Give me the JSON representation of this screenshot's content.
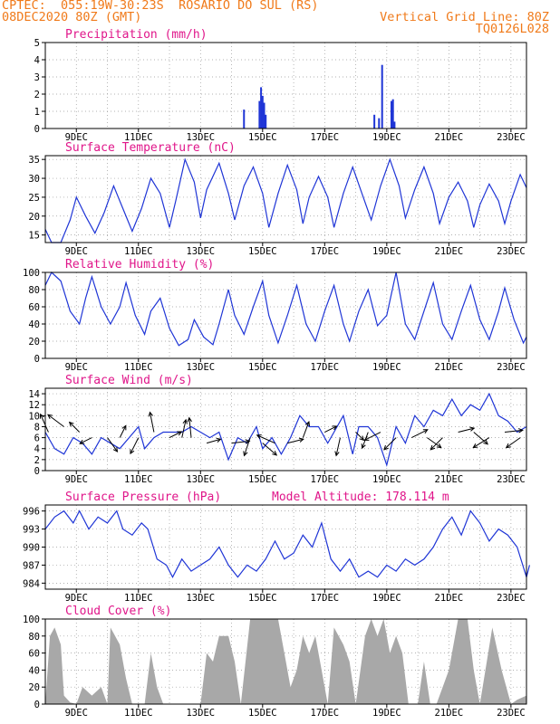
{
  "header": {
    "line1_left": "CPTEC:  055:19W-30:23S  ROSARIO DO SUL (RS)",
    "line2_left": "08DEC2020 80Z (GMT)",
    "line2_right": "Vertical Grid Line: 80Z",
    "line3_right": "TQ0126L028"
  },
  "colors": {
    "header": "#f07a1a",
    "title": "#e0168a",
    "series": "#1f35d6",
    "cloud": "#a8a8a8"
  },
  "x_axis": {
    "ticks": [
      "9DEC",
      "11DEC",
      "13DEC",
      "15DEC",
      "17DEC",
      "19DEC",
      "21DEC",
      "23DEC"
    ]
  },
  "chart_data": [
    {
      "type": "bar",
      "title": "Precipitation (mm/h)",
      "ylim": [
        0,
        5
      ],
      "yticks": [
        0,
        1,
        2,
        3,
        4,
        5
      ],
      "values_by_day": [
        [
          14.4,
          1.1
        ],
        [
          14.9,
          1.6
        ],
        [
          14.95,
          2.4
        ],
        [
          15.0,
          1.9
        ],
        [
          15.05,
          1.5
        ],
        [
          15.1,
          0.8
        ],
        [
          18.6,
          0.8
        ],
        [
          18.75,
          0.6
        ],
        [
          18.85,
          3.7
        ],
        [
          19.15,
          1.6
        ],
        [
          19.2,
          1.7
        ],
        [
          19.25,
          0.4
        ]
      ]
    },
    {
      "type": "line",
      "title": "Surface Temperature (nC)",
      "ylim": [
        13,
        36
      ],
      "yticks": [
        15,
        20,
        25,
        30,
        35
      ],
      "points": [
        [
          8.0,
          16.5
        ],
        [
          8.2,
          13.0
        ],
        [
          8.5,
          13.0
        ],
        [
          8.8,
          19
        ],
        [
          9.0,
          25.0
        ],
        [
          9.3,
          20
        ],
        [
          9.6,
          15.5
        ],
        [
          9.9,
          21
        ],
        [
          10.2,
          28.0
        ],
        [
          10.5,
          22
        ],
        [
          10.8,
          16.0
        ],
        [
          11.1,
          22
        ],
        [
          11.4,
          30.0
        ],
        [
          11.7,
          26
        ],
        [
          12.0,
          17.0
        ],
        [
          12.2,
          24
        ],
        [
          12.5,
          35.0
        ],
        [
          12.8,
          29
        ],
        [
          13.0,
          19.5
        ],
        [
          13.2,
          27
        ],
        [
          13.6,
          34.0
        ],
        [
          13.9,
          26
        ],
        [
          14.1,
          19.0
        ],
        [
          14.4,
          28
        ],
        [
          14.7,
          33.0
        ],
        [
          15.0,
          26
        ],
        [
          15.2,
          17.0
        ],
        [
          15.5,
          26
        ],
        [
          15.8,
          33.5
        ],
        [
          16.1,
          27
        ],
        [
          16.3,
          18.0
        ],
        [
          16.5,
          25
        ],
        [
          16.8,
          30.5
        ],
        [
          17.1,
          25
        ],
        [
          17.3,
          17.0
        ],
        [
          17.6,
          26
        ],
        [
          17.9,
          33.0
        ],
        [
          18.2,
          26
        ],
        [
          18.5,
          19.0
        ],
        [
          18.8,
          28
        ],
        [
          19.1,
          35.0
        ],
        [
          19.4,
          28
        ],
        [
          19.6,
          19.5
        ],
        [
          19.9,
          27
        ],
        [
          20.2,
          33.0
        ],
        [
          20.5,
          26
        ],
        [
          20.7,
          18.0
        ],
        [
          21.0,
          25
        ],
        [
          21.3,
          29.0
        ],
        [
          21.6,
          24
        ],
        [
          21.8,
          17.0
        ],
        [
          22.0,
          23
        ],
        [
          22.3,
          28.5
        ],
        [
          22.6,
          24
        ],
        [
          22.8,
          18.0
        ],
        [
          23.0,
          24
        ],
        [
          23.3,
          31.0
        ],
        [
          23.5,
          27.5
        ]
      ]
    },
    {
      "type": "line",
      "title": "Relative Humidity (%)",
      "ylim": [
        0,
        100
      ],
      "yticks": [
        0,
        20,
        40,
        60,
        80,
        100
      ],
      "points": [
        [
          8.0,
          85
        ],
        [
          8.2,
          100
        ],
        [
          8.5,
          90
        ],
        [
          8.8,
          55
        ],
        [
          9.1,
          40
        ],
        [
          9.3,
          70
        ],
        [
          9.5,
          95
        ],
        [
          9.8,
          60
        ],
        [
          10.1,
          40
        ],
        [
          10.4,
          60
        ],
        [
          10.6,
          88
        ],
        [
          10.9,
          50
        ],
        [
          11.2,
          28
        ],
        [
          11.4,
          55
        ],
        [
          11.7,
          70
        ],
        [
          12.0,
          35
        ],
        [
          12.3,
          15
        ],
        [
          12.6,
          22
        ],
        [
          12.8,
          45
        ],
        [
          13.1,
          25
        ],
        [
          13.4,
          16
        ],
        [
          13.6,
          40
        ],
        [
          13.9,
          80
        ],
        [
          14.1,
          50
        ],
        [
          14.4,
          28
        ],
        [
          14.7,
          60
        ],
        [
          15.0,
          90
        ],
        [
          15.2,
          50
        ],
        [
          15.5,
          18
        ],
        [
          15.8,
          50
        ],
        [
          16.1,
          85
        ],
        [
          16.4,
          40
        ],
        [
          16.7,
          20
        ],
        [
          17.0,
          55
        ],
        [
          17.3,
          85
        ],
        [
          17.6,
          40
        ],
        [
          17.8,
          20
        ],
        [
          18.1,
          55
        ],
        [
          18.4,
          80
        ],
        [
          18.7,
          38
        ],
        [
          19.0,
          50
        ],
        [
          19.3,
          100
        ],
        [
          19.6,
          40
        ],
        [
          19.9,
          22
        ],
        [
          20.2,
          55
        ],
        [
          20.5,
          88
        ],
        [
          20.8,
          40
        ],
        [
          21.1,
          22
        ],
        [
          21.4,
          55
        ],
        [
          21.7,
          85
        ],
        [
          22.0,
          45
        ],
        [
          22.3,
          22
        ],
        [
          22.6,
          55
        ],
        [
          22.8,
          82
        ],
        [
          23.1,
          45
        ],
        [
          23.4,
          18
        ],
        [
          23.5,
          25
        ]
      ]
    },
    {
      "type": "line",
      "title": "Surface Wind (m/s)",
      "ylim": [
        0,
        15
      ],
      "yticks": [
        0,
        2,
        4,
        6,
        8,
        10,
        12,
        14
      ],
      "points": [
        [
          8.0,
          7
        ],
        [
          8.3,
          4
        ],
        [
          8.6,
          3
        ],
        [
          8.9,
          6
        ],
        [
          9.2,
          5
        ],
        [
          9.5,
          3
        ],
        [
          9.8,
          6
        ],
        [
          10.1,
          5
        ],
        [
          10.4,
          4
        ],
        [
          10.7,
          6
        ],
        [
          11.0,
          8
        ],
        [
          11.2,
          4
        ],
        [
          11.5,
          6
        ],
        [
          11.8,
          7
        ],
        [
          12.1,
          7
        ],
        [
          12.4,
          7
        ],
        [
          12.7,
          8
        ],
        [
          13.0,
          7
        ],
        [
          13.3,
          6
        ],
        [
          13.6,
          7
        ],
        [
          13.9,
          2
        ],
        [
          14.2,
          6
        ],
        [
          14.5,
          5
        ],
        [
          14.8,
          8
        ],
        [
          15.0,
          4
        ],
        [
          15.3,
          6
        ],
        [
          15.6,
          3
        ],
        [
          15.9,
          6
        ],
        [
          16.2,
          10
        ],
        [
          16.5,
          8
        ],
        [
          16.8,
          8
        ],
        [
          17.1,
          5
        ],
        [
          17.3,
          7
        ],
        [
          17.6,
          10
        ],
        [
          17.9,
          3
        ],
        [
          18.1,
          8
        ],
        [
          18.4,
          8
        ],
        [
          18.7,
          6
        ],
        [
          19.0,
          1
        ],
        [
          19.3,
          8
        ],
        [
          19.6,
          5
        ],
        [
          19.9,
          10
        ],
        [
          20.2,
          8
        ],
        [
          20.5,
          11
        ],
        [
          20.8,
          10
        ],
        [
          21.1,
          13
        ],
        [
          21.4,
          10
        ],
        [
          21.7,
          12
        ],
        [
          22.0,
          11
        ],
        [
          22.3,
          14
        ],
        [
          22.6,
          10
        ],
        [
          22.9,
          9
        ],
        [
          23.2,
          7
        ],
        [
          23.5,
          8
        ]
      ]
    },
    {
      "type": "line",
      "title": "Surface Pressure (hPa)",
      "subtitle": "Model Altitude: 178.114 m",
      "ylim": [
        983,
        997
      ],
      "yticks": [
        984,
        987,
        990,
        993,
        996
      ],
      "points": [
        [
          8.0,
          993
        ],
        [
          8.3,
          995
        ],
        [
          8.6,
          996
        ],
        [
          8.9,
          994
        ],
        [
          9.1,
          996
        ],
        [
          9.4,
          993
        ],
        [
          9.7,
          995
        ],
        [
          10.0,
          994
        ],
        [
          10.3,
          996
        ],
        [
          10.5,
          993
        ],
        [
          10.8,
          992
        ],
        [
          11.1,
          994
        ],
        [
          11.3,
          993
        ],
        [
          11.6,
          988
        ],
        [
          11.9,
          987
        ],
        [
          12.1,
          985
        ],
        [
          12.4,
          988
        ],
        [
          12.7,
          986
        ],
        [
          13.0,
          987
        ],
        [
          13.3,
          988
        ],
        [
          13.6,
          990
        ],
        [
          13.9,
          987
        ],
        [
          14.2,
          985
        ],
        [
          14.5,
          987
        ],
        [
          14.8,
          986
        ],
        [
          15.1,
          988
        ],
        [
          15.4,
          991
        ],
        [
          15.7,
          988
        ],
        [
          16.0,
          989
        ],
        [
          16.3,
          992
        ],
        [
          16.6,
          990
        ],
        [
          16.9,
          994
        ],
        [
          17.2,
          988
        ],
        [
          17.5,
          986
        ],
        [
          17.8,
          988
        ],
        [
          18.1,
          985
        ],
        [
          18.4,
          986
        ],
        [
          18.7,
          985
        ],
        [
          19.0,
          987
        ],
        [
          19.3,
          986
        ],
        [
          19.6,
          988
        ],
        [
          19.9,
          987
        ],
        [
          20.2,
          988
        ],
        [
          20.5,
          990
        ],
        [
          20.8,
          993
        ],
        [
          21.1,
          995
        ],
        [
          21.4,
          992
        ],
        [
          21.7,
          996
        ],
        [
          22.0,
          994
        ],
        [
          22.3,
          991
        ],
        [
          22.6,
          993
        ],
        [
          22.9,
          992
        ],
        [
          23.2,
          990
        ],
        [
          23.5,
          985
        ],
        [
          23.6,
          987
        ]
      ]
    },
    {
      "type": "area",
      "title": "Cloud Cover (%)",
      "ylim": [
        0,
        100
      ],
      "yticks": [
        0,
        20,
        40,
        60,
        80,
        100
      ],
      "points": [
        [
          8.0,
          0
        ],
        [
          8.15,
          80
        ],
        [
          8.3,
          90
        ],
        [
          8.5,
          70
        ],
        [
          8.6,
          10
        ],
        [
          8.8,
          2
        ],
        [
          9.0,
          0
        ],
        [
          9.2,
          20
        ],
        [
          9.5,
          10
        ],
        [
          9.8,
          20
        ],
        [
          10.0,
          0
        ],
        [
          10.1,
          90
        ],
        [
          10.4,
          70
        ],
        [
          10.6,
          30
        ],
        [
          10.8,
          0
        ],
        [
          11.2,
          0
        ],
        [
          11.4,
          60
        ],
        [
          11.6,
          20
        ],
        [
          11.8,
          0
        ],
        [
          12.6,
          0
        ],
        [
          13.0,
          0
        ],
        [
          13.2,
          60
        ],
        [
          13.4,
          50
        ],
        [
          13.6,
          80
        ],
        [
          13.9,
          80
        ],
        [
          14.1,
          50
        ],
        [
          14.3,
          0
        ],
        [
          14.6,
          100
        ],
        [
          15.0,
          100
        ],
        [
          15.5,
          100
        ],
        [
          15.7,
          60
        ],
        [
          15.9,
          20
        ],
        [
          16.1,
          40
        ],
        [
          16.3,
          80
        ],
        [
          16.5,
          60
        ],
        [
          16.7,
          80
        ],
        [
          16.9,
          40
        ],
        [
          17.1,
          0
        ],
        [
          17.3,
          90
        ],
        [
          17.6,
          70
        ],
        [
          17.8,
          50
        ],
        [
          18.0,
          0
        ],
        [
          18.3,
          80
        ],
        [
          18.5,
          100
        ],
        [
          18.7,
          80
        ],
        [
          18.9,
          100
        ],
        [
          19.1,
          60
        ],
        [
          19.3,
          80
        ],
        [
          19.5,
          60
        ],
        [
          19.7,
          0
        ],
        [
          20.0,
          0
        ],
        [
          20.2,
          50
        ],
        [
          20.4,
          0
        ],
        [
          20.6,
          0
        ],
        [
          21.0,
          40
        ],
        [
          21.3,
          100
        ],
        [
          21.6,
          100
        ],
        [
          21.8,
          40
        ],
        [
          22.0,
          0
        ],
        [
          22.4,
          90
        ],
        [
          22.7,
          40
        ],
        [
          23.0,
          0
        ],
        [
          23.2,
          5
        ],
        [
          23.5,
          10
        ]
      ]
    }
  ],
  "wind_barbs": [
    [
      8.1,
      7,
      -0.4,
      0.9
    ],
    [
      8.6,
      8,
      -0.8,
      0.6
    ],
    [
      9.1,
      7,
      -0.5,
      0.5
    ],
    [
      9.5,
      6,
      -0.6,
      -0.3
    ],
    [
      10.0,
      6,
      0.5,
      -0.7
    ],
    [
      10.4,
      6,
      0.3,
      0.6
    ],
    [
      11.0,
      6,
      -0.4,
      -0.8
    ],
    [
      11.5,
      7,
      -0.2,
      1.0
    ],
    [
      12.0,
      6,
      0.6,
      0.3
    ],
    [
      12.4,
      6,
      0.2,
      0.9
    ],
    [
      12.7,
      6,
      -0.1,
      1.0
    ],
    [
      13.2,
      5,
      0.7,
      0.2
    ],
    [
      14.0,
      5,
      0.9,
      0.1
    ],
    [
      14.6,
      6,
      -0.3,
      -0.9
    ],
    [
      15.0,
      5,
      0.7,
      -0.6
    ],
    [
      15.4,
      5,
      -0.9,
      0.4
    ],
    [
      15.8,
      5,
      0.8,
      0.2
    ],
    [
      16.3,
      6,
      0.3,
      0.8
    ],
    [
      17.0,
      7,
      0.6,
      0.3
    ],
    [
      17.5,
      6,
      -0.2,
      -0.9
    ],
    [
      18.0,
      7,
      0.4,
      -0.4
    ],
    [
      18.4,
      7,
      -0.3,
      -0.8
    ],
    [
      18.8,
      7,
      -0.8,
      -0.4
    ],
    [
      19.3,
      6,
      -0.6,
      -0.6
    ],
    [
      19.8,
      6,
      0.8,
      0.4
    ],
    [
      20.3,
      6,
      0.7,
      -0.5
    ],
    [
      20.8,
      6,
      -0.6,
      -0.6
    ],
    [
      21.3,
      7,
      0.8,
      0.2
    ],
    [
      21.8,
      7,
      0.7,
      -0.6
    ],
    [
      22.3,
      6,
      -0.8,
      -0.5
    ],
    [
      22.8,
      7,
      0.9,
      0.1
    ],
    [
      23.3,
      6,
      -0.7,
      -0.5
    ]
  ]
}
